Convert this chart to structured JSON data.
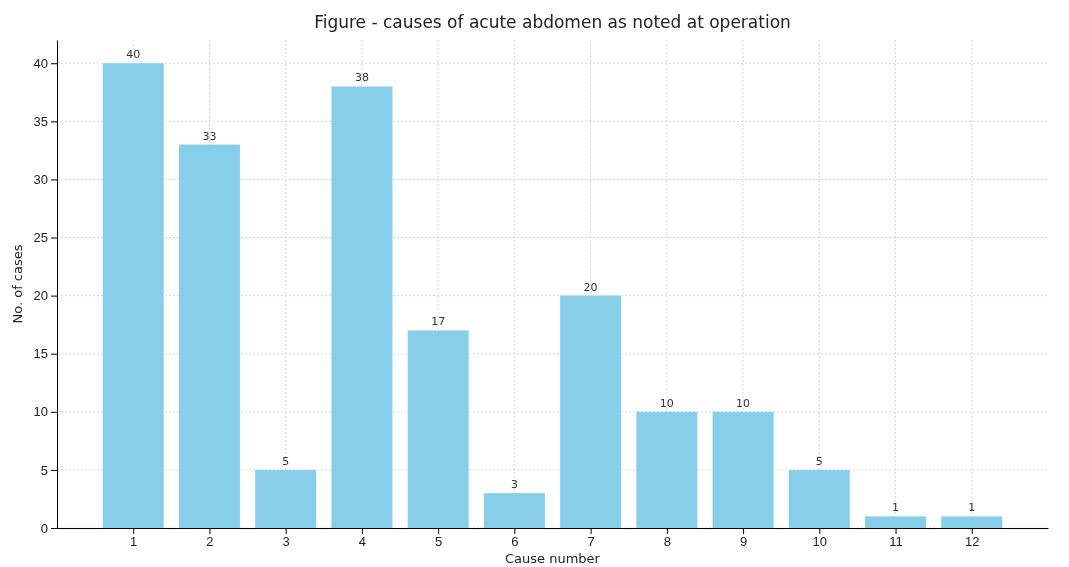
{
  "chart_data": {
    "type": "bar",
    "title": "Figure - causes of acute abdomen as noted at operation",
    "xlabel": "Cause number",
    "ylabel": "No. of cases",
    "x": [
      1,
      2,
      3,
      4,
      5,
      6,
      7,
      8,
      9,
      10,
      11,
      12
    ],
    "values": [
      40,
      33,
      5,
      38,
      17,
      3,
      20,
      10,
      10,
      5,
      1,
      1
    ],
    "color": "#87ceeb",
    "xlim": [
      0,
      13
    ],
    "xticks": [
      1,
      2,
      3,
      4,
      5,
      6,
      7,
      8,
      9,
      10,
      11,
      12
    ],
    "ylim": [
      0,
      42
    ],
    "yticks": [
      0,
      5,
      10,
      15,
      20,
      25,
      30,
      35,
      40
    ],
    "grid": true,
    "data_labels": true
  }
}
